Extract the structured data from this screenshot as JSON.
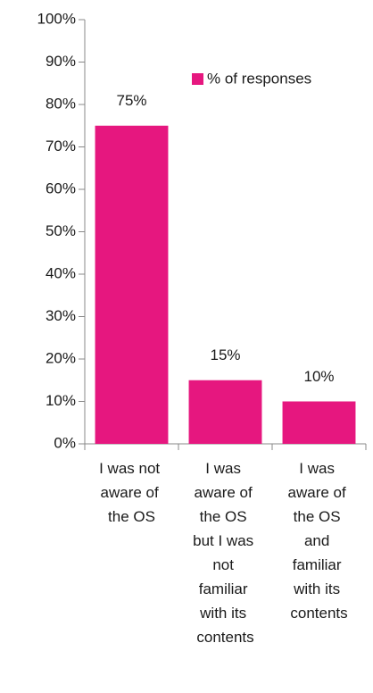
{
  "chart_data": {
    "type": "bar",
    "categories": [
      "I was not aware of the OS",
      "I was aware of the OS but I was not familiar with its contents",
      "I was aware of the OS and familiar with its contents"
    ],
    "series": [
      {
        "name": "% of responses",
        "color": "#e6177f",
        "values": [
          75,
          15,
          10
        ],
        "value_labels": [
          "75%",
          "15%",
          "10%"
        ]
      }
    ],
    "ylim": [
      0,
      100
    ],
    "yticks": [
      {
        "value": 0,
        "label": "0%"
      },
      {
        "value": 10,
        "label": "10%"
      },
      {
        "value": 20,
        "label": "20%"
      },
      {
        "value": 30,
        "label": "30%"
      },
      {
        "value": 40,
        "label": "40%"
      },
      {
        "value": 50,
        "label": "50%"
      },
      {
        "value": 60,
        "label": "60%"
      },
      {
        "value": 70,
        "label": "70%"
      },
      {
        "value": 80,
        "label": "80%"
      },
      {
        "value": 90,
        "label": "90%"
      },
      {
        "value": 100,
        "label": "100%"
      }
    ],
    "legend": "top-right"
  }
}
